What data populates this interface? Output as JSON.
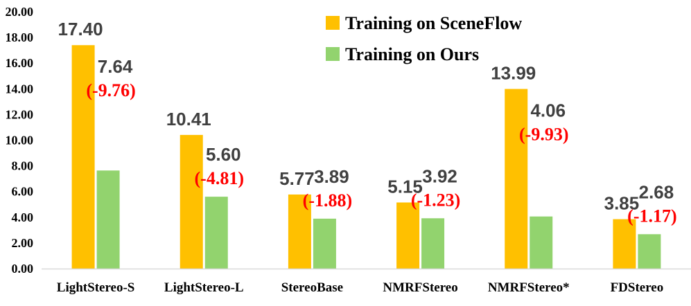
{
  "chart_data": {
    "type": "bar",
    "categories": [
      "LightStereo-S",
      "LightStereo-L",
      "StereoBase",
      "NMRFStereo",
      "NMRFStereo*",
      "FDStereo"
    ],
    "series": [
      {
        "name": "Training on SceneFlow",
        "values": [
          17.4,
          10.41,
          5.77,
          5.15,
          13.99,
          3.85
        ],
        "color": "#FFC000",
        "labels": [
          "17.40",
          "10.41",
          "5.77",
          "5.15",
          "13.99",
          "3.85"
        ]
      },
      {
        "name": "Training on Ours",
        "values": [
          7.64,
          5.6,
          3.89,
          3.92,
          4.06,
          2.68
        ],
        "color": "#92D36E",
        "labels": [
          "7.64",
          "5.60",
          "3.89",
          "3.92",
          "4.06",
          "2.68"
        ]
      }
    ],
    "deltas": [
      "(-9.76)",
      "(-4.81)",
      "(-1.88)",
      "(-1.23)",
      "(-9.93)",
      "(-1.17)"
    ],
    "delta_color": "#FF0000",
    "yticks": [
      "0.00",
      "2.00",
      "4.00",
      "6.00",
      "8.00",
      "10.00",
      "12.00",
      "14.00",
      "16.00",
      "18.00",
      "20.00"
    ],
    "ylim": [
      0,
      20
    ],
    "grid": false,
    "legend_position": "top-right"
  }
}
